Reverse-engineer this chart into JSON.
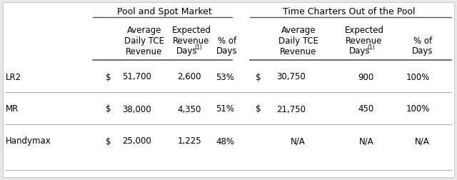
{
  "group_headers": [
    "Pool and Spot Market",
    "Time Charters Out of the Pool"
  ],
  "col_headers": [
    [
      "Average",
      "Daily TCE",
      "Revenue"
    ],
    [
      "Expected",
      "Revenue",
      "Days(1)"
    ],
    [
      "% of",
      "Days",
      ""
    ],
    [
      "Average",
      "Daily TCE",
      "Revenue"
    ],
    [
      "Expected",
      "Revenue",
      "Days(1)"
    ],
    [
      "% of",
      "Days",
      ""
    ]
  ],
  "rows": [
    [
      "LR2",
      "$",
      "51,700",
      "2,600",
      "53%",
      "$",
      "30,750",
      "900",
      "100%"
    ],
    [
      "MR",
      "$",
      "38,000",
      "4,350",
      "51%",
      "$",
      "21,750",
      "450",
      "100%"
    ],
    [
      "Handymax",
      "$",
      "25,000",
      "1,225",
      "48%",
      "",
      "N/A",
      "N/A",
      "N/A"
    ]
  ],
  "bg_color": "#e8e8e8",
  "table_bg": "#ffffff",
  "line_color": "#aaaaaa",
  "header_line_color": "#555555",
  "font_size": 8.5,
  "header_font_size": 9
}
